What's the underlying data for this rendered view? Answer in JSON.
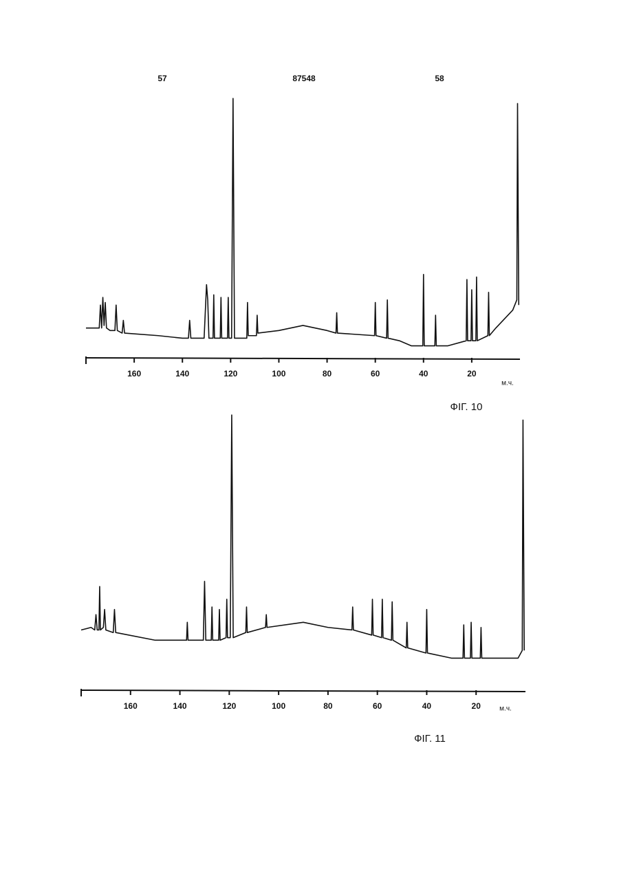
{
  "header": {
    "left": "57",
    "center": "87548",
    "right": "58"
  },
  "chart_data": [
    {
      "type": "line",
      "caption": "ФІГ. 10",
      "x_label": "м.ч.",
      "xlim": [
        180,
        0
      ],
      "xticks": [
        160,
        140,
        120,
        100,
        80,
        60,
        40,
        20
      ],
      "x": [
        180,
        176,
        174.5,
        174,
        173.5,
        173,
        172.5,
        172,
        171.5,
        170,
        168,
        167.5,
        167,
        165,
        164.5,
        164,
        150,
        140,
        137.5,
        137,
        136.5,
        131,
        130,
        129.5,
        129,
        127.3,
        127,
        126.7,
        124.3,
        124,
        123.7,
        121.3,
        121,
        120.7,
        119.6,
        119,
        118.4,
        113.3,
        113,
        112.7,
        109.3,
        109,
        108.7,
        100,
        90,
        80,
        76.3,
        76,
        75.7,
        60.3,
        60,
        59.7,
        55.3,
        55,
        54.7,
        50,
        45,
        40.3,
        40,
        39.7,
        35.3,
        35,
        34.7,
        30,
        22.3,
        22,
        21.7,
        20.3,
        20,
        19.7,
        18.3,
        18,
        17.7,
        13.3,
        13,
        12.7,
        10,
        3,
        1.3,
        1,
        0.5
      ],
      "series": [
        {
          "color": "#111111",
          "values": [
            9,
            9,
            9,
            18,
            9,
            21,
            10,
            19,
            9,
            8,
            8,
            18,
            8,
            7,
            12,
            7,
            6,
            5,
            5,
            12,
            5,
            5,
            26,
            20,
            5,
            5,
            22,
            5,
            5,
            21,
            5,
            5,
            21,
            5,
            5,
            99,
            5,
            5,
            19,
            6,
            6,
            14,
            7,
            8,
            10,
            8,
            7,
            15,
            7,
            6,
            19,
            6,
            5,
            20,
            5,
            4,
            2,
            2,
            30,
            2,
            2,
            14,
            2,
            2,
            4,
            28,
            4,
            4,
            24,
            4,
            4,
            29,
            4,
            6,
            23,
            6,
            9,
            16,
            20,
            97,
            18
          ]
        }
      ]
    },
    {
      "type": "line",
      "caption": "ФІГ. 11",
      "x_label": "м.ч.",
      "xlim": [
        180,
        0
      ],
      "xticks": [
        160,
        140,
        120,
        100,
        80,
        60,
        40,
        20
      ],
      "x": [
        180,
        176,
        174.5,
        174,
        173.5,
        172.8,
        172.5,
        172.2,
        171,
        170.5,
        170,
        167,
        166.5,
        166,
        150,
        140,
        137.3,
        137,
        136.7,
        130.5,
        130,
        129.5,
        127.3,
        127,
        126.7,
        124.3,
        124,
        123.7,
        121.3,
        121,
        120.7,
        119.6,
        119,
        118.4,
        113.3,
        113,
        112.7,
        105.3,
        105,
        104.7,
        90,
        80,
        70.3,
        70,
        69.7,
        62.3,
        62,
        61.7,
        58.3,
        58,
        57.7,
        54.3,
        54,
        53.7,
        48.3,
        48,
        47.7,
        40.3,
        40,
        39.7,
        30,
        25.3,
        25,
        24.7,
        22.3,
        22,
        21.7,
        18.3,
        18,
        17.7,
        10,
        3,
        1.3,
        1,
        0.5
      ],
      "series": [
        {
          "color": "#111111",
          "values": [
            16,
            17,
            16,
            22,
            16,
            16,
            33,
            16,
            17,
            24,
            16,
            15,
            24,
            15,
            12,
            12,
            12,
            19,
            12,
            12,
            35,
            12,
            12,
            25,
            12,
            12,
            24,
            12,
            13,
            28,
            13,
            13,
            100,
            13,
            15,
            25,
            15,
            17,
            22,
            17,
            19,
            17,
            16,
            25,
            16,
            14,
            28,
            14,
            13,
            28,
            13,
            12,
            27,
            12,
            9,
            19,
            9,
            7,
            24,
            7,
            5,
            5,
            18,
            5,
            5,
            19,
            5,
            5,
            17,
            5,
            5,
            5,
            8,
            98,
            8
          ]
        }
      ]
    }
  ]
}
